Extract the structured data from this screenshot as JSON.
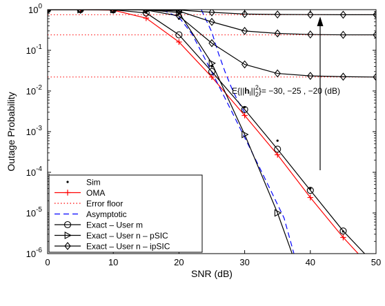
{
  "chart_data": {
    "type": "line",
    "title": "",
    "xlabel": "SNR (dB)",
    "ylabel": "Outage Probability",
    "xlim": [
      0,
      50
    ],
    "ylim": [
      1e-06,
      1
    ],
    "yscale": "log",
    "grid": false,
    "legend_position": "bottom-left",
    "x_ticks": [
      "0",
      "10",
      "20",
      "30",
      "40",
      "50"
    ],
    "y_ticks": [
      {
        "base": "10",
        "exp": "0"
      },
      {
        "base": "10",
        "exp": "-1"
      },
      {
        "base": "10",
        "exp": "-2"
      },
      {
        "base": "10",
        "exp": "-3"
      },
      {
        "base": "10",
        "exp": "-4"
      },
      {
        "base": "10",
        "exp": "-5"
      },
      {
        "base": "10",
        "exp": "-6"
      }
    ],
    "annotation": {
      "prefix": "E{||",
      "bold": "h",
      "sub": "l",
      "mid": "||",
      "sup": "2",
      "sub2": "2",
      "suffix": "}= −30, −25 , −20 (dB)"
    },
    "colors": {
      "red": "#ff0000",
      "blue": "#0000ff",
      "black": "#000000"
    },
    "series": [
      {
        "name": "Sim",
        "marker": "dot",
        "color": "#000000",
        "line": "none",
        "x": [
          0,
          5,
          10,
          15,
          20,
          25,
          30,
          35,
          40,
          45
        ],
        "y": [
          1,
          1,
          1,
          0.9,
          0.6,
          0.04,
          0.004,
          0.0006,
          4e-05,
          3.5e-06
        ]
      },
      {
        "name": "OMA",
        "marker": "plus",
        "color": "#ff0000",
        "line": "solid",
        "x": [
          0,
          5,
          10,
          15,
          20,
          25,
          30,
          35,
          40,
          45,
          48
        ],
        "y": [
          1,
          1,
          0.97,
          0.62,
          0.16,
          0.022,
          0.0025,
          0.00027,
          2.4e-05,
          2.5e-06,
          7.5e-07
        ]
      },
      {
        "name": "Error floor",
        "marker": "none",
        "color": "#ff0000",
        "line": "dotted",
        "floors": [
          0.75,
          0.24,
          0.022
        ]
      },
      {
        "name": "Asymptotic",
        "marker": "none",
        "color": "#0000ff",
        "line": "dashed",
        "x": [
          16.1,
          18,
          20,
          22,
          24,
          26,
          28,
          30,
          32,
          34,
          36,
          37.5
        ],
        "y": [
          1,
          0.9,
          0.65,
          0.25,
          0.06,
          0.014,
          0.0032,
          0.00072,
          0.00016,
          3.5e-05,
          7.5e-06,
          1e-06
        ]
      },
      {
        "name": "Asymptotic",
        "marker": "none",
        "color": "#0000ff",
        "line": "dashed",
        "x": [
          23.4,
          24,
          25,
          26,
          27,
          28,
          29,
          30
        ],
        "y": [
          1,
          0.62,
          0.28,
          0.085,
          0.03,
          0.012,
          0.0055,
          0.003
        ]
      },
      {
        "name": "Exact – User m",
        "marker": "circle",
        "color": "#000000",
        "line": "solid",
        "x": [
          0,
          5,
          10,
          15,
          20,
          25,
          30,
          35,
          40,
          45,
          49
        ],
        "y": [
          1,
          1,
          0.99,
          0.83,
          0.24,
          0.03,
          0.0035,
          0.00037,
          3.6e-05,
          3.6e-06,
          7.5e-07
        ]
      },
      {
        "name": "Exact – User n – pSIC",
        "marker": "triangle-right",
        "color": "#000000",
        "line": "solid",
        "x": [
          0,
          5,
          10,
          15,
          20,
          25,
          30,
          35,
          37.5
        ],
        "y": [
          1,
          1,
          1,
          0.99,
          0.85,
          0.048,
          0.00085,
          1e-05,
          7.5e-07
        ]
      },
      {
        "name": "Exact – User n – ipSIC",
        "marker": "diamond",
        "color": "#000000",
        "line": "solid",
        "curves": [
          {
            "x": [
              0,
              5,
              10,
              15,
              20,
              25,
              30,
              35,
              40,
              45,
              50
            ],
            "y": [
              1,
              1,
              1,
              1,
              0.98,
              0.86,
              0.78,
              0.76,
              0.755,
              0.75,
              0.75
            ]
          },
          {
            "x": [
              0,
              5,
              10,
              15,
              20,
              25,
              30,
              35,
              40,
              45,
              50
            ],
            "y": [
              1,
              1,
              1,
              1,
              0.92,
              0.5,
              0.3,
              0.26,
              0.245,
              0.24,
              0.24
            ]
          },
          {
            "x": [
              0,
              5,
              10,
              15,
              20,
              25,
              30,
              35,
              40,
              45,
              50
            ],
            "y": [
              1,
              1,
              1,
              0.98,
              0.7,
              0.15,
              0.045,
              0.027,
              0.0235,
              0.0225,
              0.022
            ]
          }
        ]
      }
    ]
  }
}
